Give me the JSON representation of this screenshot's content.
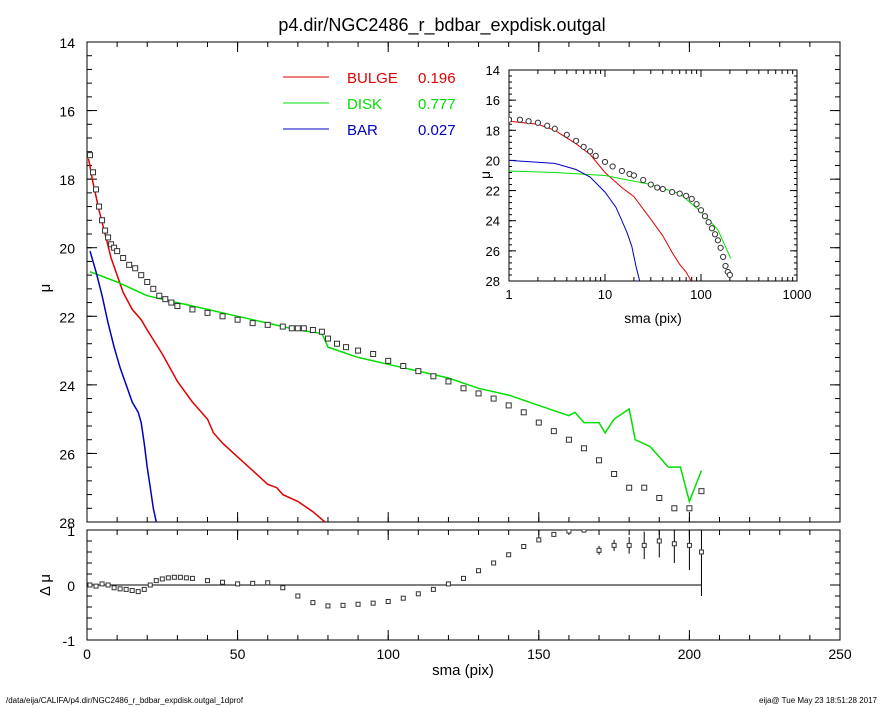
{
  "footer": {
    "path": "/data/eija/CALIFA/p4.dir/NGC2486_r_bdbar_expdisk.outgal_1dprof",
    "stamp": "eija@  Tue May 23 18:51:28 2017"
  },
  "chart_data": [
    {
      "type": "line",
      "title": "p4.dir/NGC2486_r_bdbar_expdisk.outgal",
      "xlabel": "sma (pix)",
      "ylabel": "μ",
      "xlim": [
        0,
        250
      ],
      "ylim": [
        28,
        14
      ],
      "y_inverted": true,
      "xticks": [
        0,
        50,
        100,
        150,
        200,
        250
      ],
      "xtick_labels": [
        "0",
        "50",
        "100",
        "150",
        "200",
        "250"
      ],
      "yticks": [
        14,
        16,
        18,
        20,
        22,
        24,
        26,
        28
      ],
      "ytick_labels": [
        "14",
        "16",
        "18",
        "20",
        "22",
        "24",
        "26",
        "28"
      ],
      "legend": {
        "placement": "top-center",
        "entries": [
          {
            "label": "BULGE",
            "value": "0.196",
            "color": "#e00000"
          },
          {
            "label": "DISK",
            "value": "0.777",
            "color": "#00e000"
          },
          {
            "label": "BAR",
            "value": "0.027",
            "color": "#0000c0"
          }
        ]
      },
      "series": [
        {
          "name": "BULGE",
          "color": "#e00000",
          "x": [
            0.5,
            2,
            4,
            6,
            8,
            10,
            12,
            15,
            18,
            20,
            25,
            30,
            35,
            40,
            42,
            45,
            50,
            55,
            60,
            63,
            65,
            70,
            75,
            79
          ],
          "y": [
            17.4,
            18.1,
            18.9,
            19.6,
            20.3,
            20.8,
            21.3,
            21.8,
            22.1,
            22.4,
            23.1,
            23.9,
            24.5,
            25.0,
            25.4,
            25.7,
            26.1,
            26.5,
            26.9,
            27.0,
            27.2,
            27.4,
            27.7,
            28.0
          ]
        },
        {
          "name": "DISK",
          "color": "#00e000",
          "x": [
            1,
            10,
            20,
            30,
            40,
            50,
            55,
            60,
            70,
            78,
            80,
            90,
            100,
            110,
            120,
            130,
            140,
            150,
            160,
            162,
            165,
            170,
            172,
            175,
            180,
            182,
            187,
            190,
            193,
            197,
            200,
            204
          ],
          "y": [
            20.7,
            21.0,
            21.4,
            21.6,
            21.8,
            22.0,
            22.1,
            22.2,
            22.4,
            22.5,
            22.9,
            23.2,
            23.4,
            23.6,
            23.8,
            24.1,
            24.3,
            24.6,
            24.9,
            24.8,
            25.1,
            25.1,
            25.4,
            25.0,
            24.7,
            25.6,
            25.8,
            26.1,
            26.4,
            26.4,
            27.4,
            26.5
          ]
        },
        {
          "name": "BAR",
          "color": "#0000c0",
          "x": [
            1,
            3,
            5,
            7,
            9,
            11,
            13,
            15,
            17,
            18,
            19,
            20,
            21,
            22,
            23
          ],
          "y": [
            20.1,
            20.7,
            21.4,
            22.2,
            22.9,
            23.5,
            24.0,
            24.5,
            24.8,
            25.1,
            25.7,
            26.4,
            27.0,
            27.6,
            28.0
          ]
        },
        {
          "name": "data",
          "color": "#000000",
          "marker": "square",
          "x": [
            1,
            2,
            3,
            4,
            5,
            6,
            7,
            8,
            9,
            10,
            12,
            14,
            16,
            18,
            20,
            22,
            24,
            26,
            28,
            30,
            35,
            40,
            45,
            50,
            55,
            60,
            65,
            68,
            70,
            72,
            75,
            78,
            80,
            83,
            86,
            90,
            95,
            100,
            105,
            110,
            115,
            120,
            125,
            130,
            135,
            140,
            145,
            150,
            155,
            160,
            165,
            170,
            175,
            180,
            185,
            190,
            195,
            200,
            204
          ],
          "y": [
            17.3,
            17.8,
            18.3,
            18.8,
            19.2,
            19.5,
            19.7,
            19.9,
            20.0,
            20.1,
            20.3,
            20.5,
            20.6,
            20.8,
            21.0,
            21.2,
            21.4,
            21.5,
            21.6,
            21.7,
            21.8,
            21.9,
            22.0,
            22.1,
            22.2,
            22.25,
            22.3,
            22.35,
            22.35,
            22.35,
            22.4,
            22.45,
            22.65,
            22.8,
            22.9,
            23.0,
            23.1,
            23.3,
            23.45,
            23.6,
            23.75,
            23.9,
            24.1,
            24.25,
            24.4,
            24.6,
            24.8,
            25.1,
            25.35,
            25.6,
            25.85,
            26.2,
            26.6,
            27.0,
            27.0,
            27.3,
            27.6,
            27.6,
            27.1
          ]
        }
      ]
    },
    {
      "type": "scatter",
      "xlabel": "sma (pix)",
      "ylabel": "Δ μ",
      "xlim": [
        0,
        250
      ],
      "ylim": [
        -1,
        1
      ],
      "yticks": [
        -1,
        0,
        1
      ],
      "ytick_labels": [
        "-1",
        "0",
        "1"
      ],
      "reference_line": 0,
      "series": [
        {
          "name": "residual",
          "color": "#000000",
          "marker": "square",
          "x": [
            1,
            3,
            5,
            7,
            9,
            11,
            13,
            15,
            17,
            19,
            21,
            23,
            25,
            27,
            29,
            31,
            33,
            35,
            40,
            45,
            50,
            55,
            60,
            65,
            70,
            75,
            80,
            85,
            90,
            95,
            100,
            105,
            110,
            115,
            120,
            125,
            130,
            135,
            140,
            145,
            150,
            155,
            160,
            165,
            170,
            175,
            180,
            185,
            190,
            195,
            200,
            204
          ],
          "y": [
            0.0,
            -0.02,
            0.02,
            0.0,
            -0.05,
            -0.07,
            -0.08,
            -0.1,
            -0.12,
            -0.08,
            0.0,
            0.08,
            0.11,
            0.13,
            0.14,
            0.14,
            0.13,
            0.12,
            0.08,
            0.05,
            0.02,
            0.03,
            0.04,
            -0.05,
            -0.2,
            -0.32,
            -0.38,
            -0.37,
            -0.35,
            -0.33,
            -0.3,
            -0.24,
            -0.16,
            -0.08,
            0.02,
            0.12,
            0.26,
            0.4,
            0.55,
            0.7,
            0.82,
            0.92,
            0.98,
            1.0,
            0.63,
            0.72,
            0.72,
            0.72,
            0.8,
            0.75,
            0.72,
            0.6
          ],
          "err": [
            0.0,
            0.0,
            0.0,
            0.0,
            0.0,
            0.0,
            0.0,
            0.0,
            0.0,
            0.0,
            0.0,
            0.0,
            0.0,
            0.0,
            0.0,
            0.0,
            0.0,
            0.0,
            0.0,
            0.0,
            0.0,
            0.0,
            0.0,
            0.0,
            0.0,
            0.0,
            0.0,
            0.0,
            0.0,
            0.0,
            0.0,
            0.0,
            0.0,
            0.0,
            0.0,
            0.0,
            0.0,
            0.0,
            0.0,
            0.0,
            0.0,
            0.0,
            0.0,
            0.05,
            0.08,
            0.1,
            0.15,
            0.25,
            0.3,
            0.35,
            0.45,
            0.8
          ]
        }
      ]
    },
    {
      "type": "line",
      "inset": true,
      "xlabel": "sma (pix)",
      "ylabel": "μ",
      "xscale": "log",
      "xlim": [
        1,
        1000
      ],
      "ylim": [
        28,
        14
      ],
      "y_inverted": true,
      "xticks": [
        1,
        10,
        100,
        1000
      ],
      "xtick_labels": [
        "1",
        "10",
        "100",
        "1000"
      ],
      "yticks": [
        14,
        16,
        18,
        20,
        22,
        24,
        26,
        28
      ],
      "ytick_labels": [
        "14",
        "16",
        "18",
        "20",
        "22",
        "24",
        "26",
        "28"
      ],
      "series": [
        {
          "name": "BULGE",
          "color": "#e00000",
          "x": [
            1,
            2,
            3,
            5,
            7,
            10,
            15,
            20,
            30,
            40,
            50,
            60,
            70,
            79
          ],
          "y": [
            17.4,
            17.6,
            18.0,
            18.9,
            19.6,
            20.8,
            21.8,
            22.4,
            23.9,
            25.0,
            26.1,
            26.9,
            27.4,
            28.0
          ]
        },
        {
          "name": "DISK",
          "color": "#00e000",
          "x": [
            1,
            3,
            10,
            30,
            60,
            100,
            150,
            204
          ],
          "y": [
            20.7,
            20.8,
            21.0,
            21.6,
            22.2,
            23.4,
            24.6,
            26.5
          ]
        },
        {
          "name": "BAR",
          "color": "#0000c0",
          "x": [
            1,
            3,
            5,
            7,
            10,
            13,
            15,
            17,
            19,
            21,
            23
          ],
          "y": [
            20.0,
            20.2,
            20.6,
            21.1,
            22.1,
            23.1,
            24.0,
            24.8,
            25.7,
            27.0,
            28.0
          ]
        },
        {
          "name": "data",
          "color": "#000000",
          "marker": "circle",
          "x": [
            1,
            1.3,
            1.6,
            2,
            2.5,
            3,
            4,
            5,
            6,
            7,
            8,
            10,
            12,
            15,
            18,
            20,
            25,
            30,
            35,
            40,
            50,
            60,
            70,
            80,
            90,
            100,
            110,
            120,
            130,
            140,
            150,
            160,
            170,
            180,
            190,
            200
          ],
          "y": [
            17.3,
            17.3,
            17.4,
            17.5,
            17.7,
            17.9,
            18.3,
            18.7,
            19.1,
            19.4,
            19.7,
            20.1,
            20.4,
            20.7,
            20.9,
            21.0,
            21.3,
            21.6,
            21.8,
            21.9,
            22.1,
            22.2,
            22.35,
            22.55,
            22.9,
            23.3,
            23.7,
            24.1,
            24.5,
            24.9,
            25.3,
            25.8,
            26.4,
            27.0,
            27.4,
            27.6
          ]
        }
      ]
    }
  ]
}
